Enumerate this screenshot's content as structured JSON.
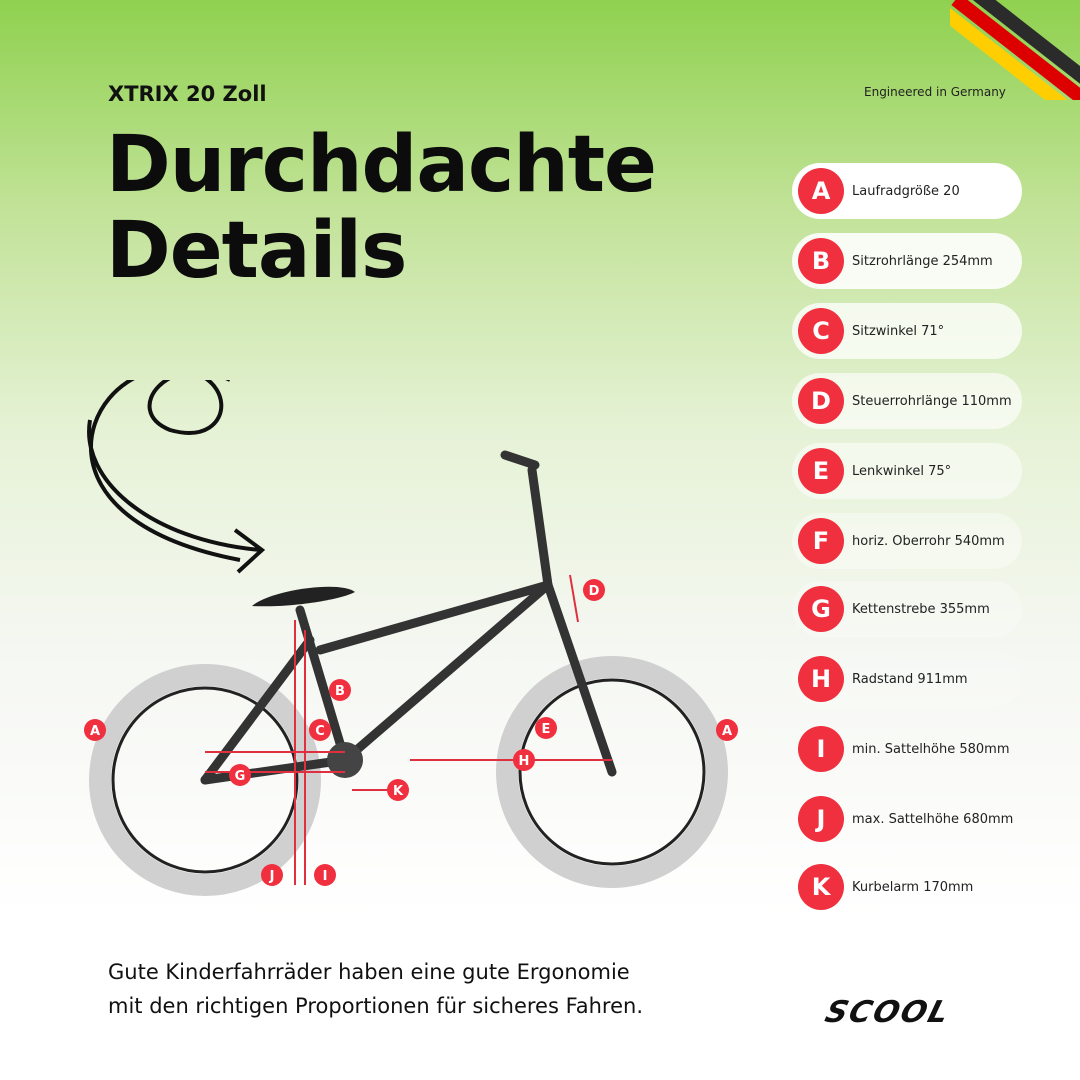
{
  "header": {
    "subtitle": "XTRIX 20 Zoll",
    "title_line1": "Durchdachte",
    "title_line2": "Details",
    "tagline": "Engineered in Germany"
  },
  "flag_colors": [
    "#000000",
    "#dd0000",
    "#ffce00"
  ],
  "accent": "#f0303f",
  "specs": [
    {
      "letter": "A",
      "text": "Laufradgröße 20"
    },
    {
      "letter": "B",
      "text": "Sitzrohrlänge 254mm"
    },
    {
      "letter": "C",
      "text": "Sitzwinkel 71°"
    },
    {
      "letter": "D",
      "text": "Steuerrohrlänge 110mm"
    },
    {
      "letter": "E",
      "text": "Lenkwinkel 75°"
    },
    {
      "letter": "F",
      "text": "horiz. Oberrohr 540mm"
    },
    {
      "letter": "G",
      "text": "Kettenstrebe 355mm"
    },
    {
      "letter": "H",
      "text": "Radstand 911mm"
    },
    {
      "letter": "I",
      "text": "min. Sattelhöhe 580mm"
    },
    {
      "letter": "J",
      "text": "max. Sattelhöhe 680mm"
    },
    {
      "letter": "K",
      "text": "Kurbelarm 170mm"
    }
  ],
  "footer": {
    "line1": "Gute Kinderfahrräder haben eine gute Ergonomie",
    "line2": "mit den richtigen Proportionen für sicheres Fahren."
  },
  "logo": "SCOOL"
}
